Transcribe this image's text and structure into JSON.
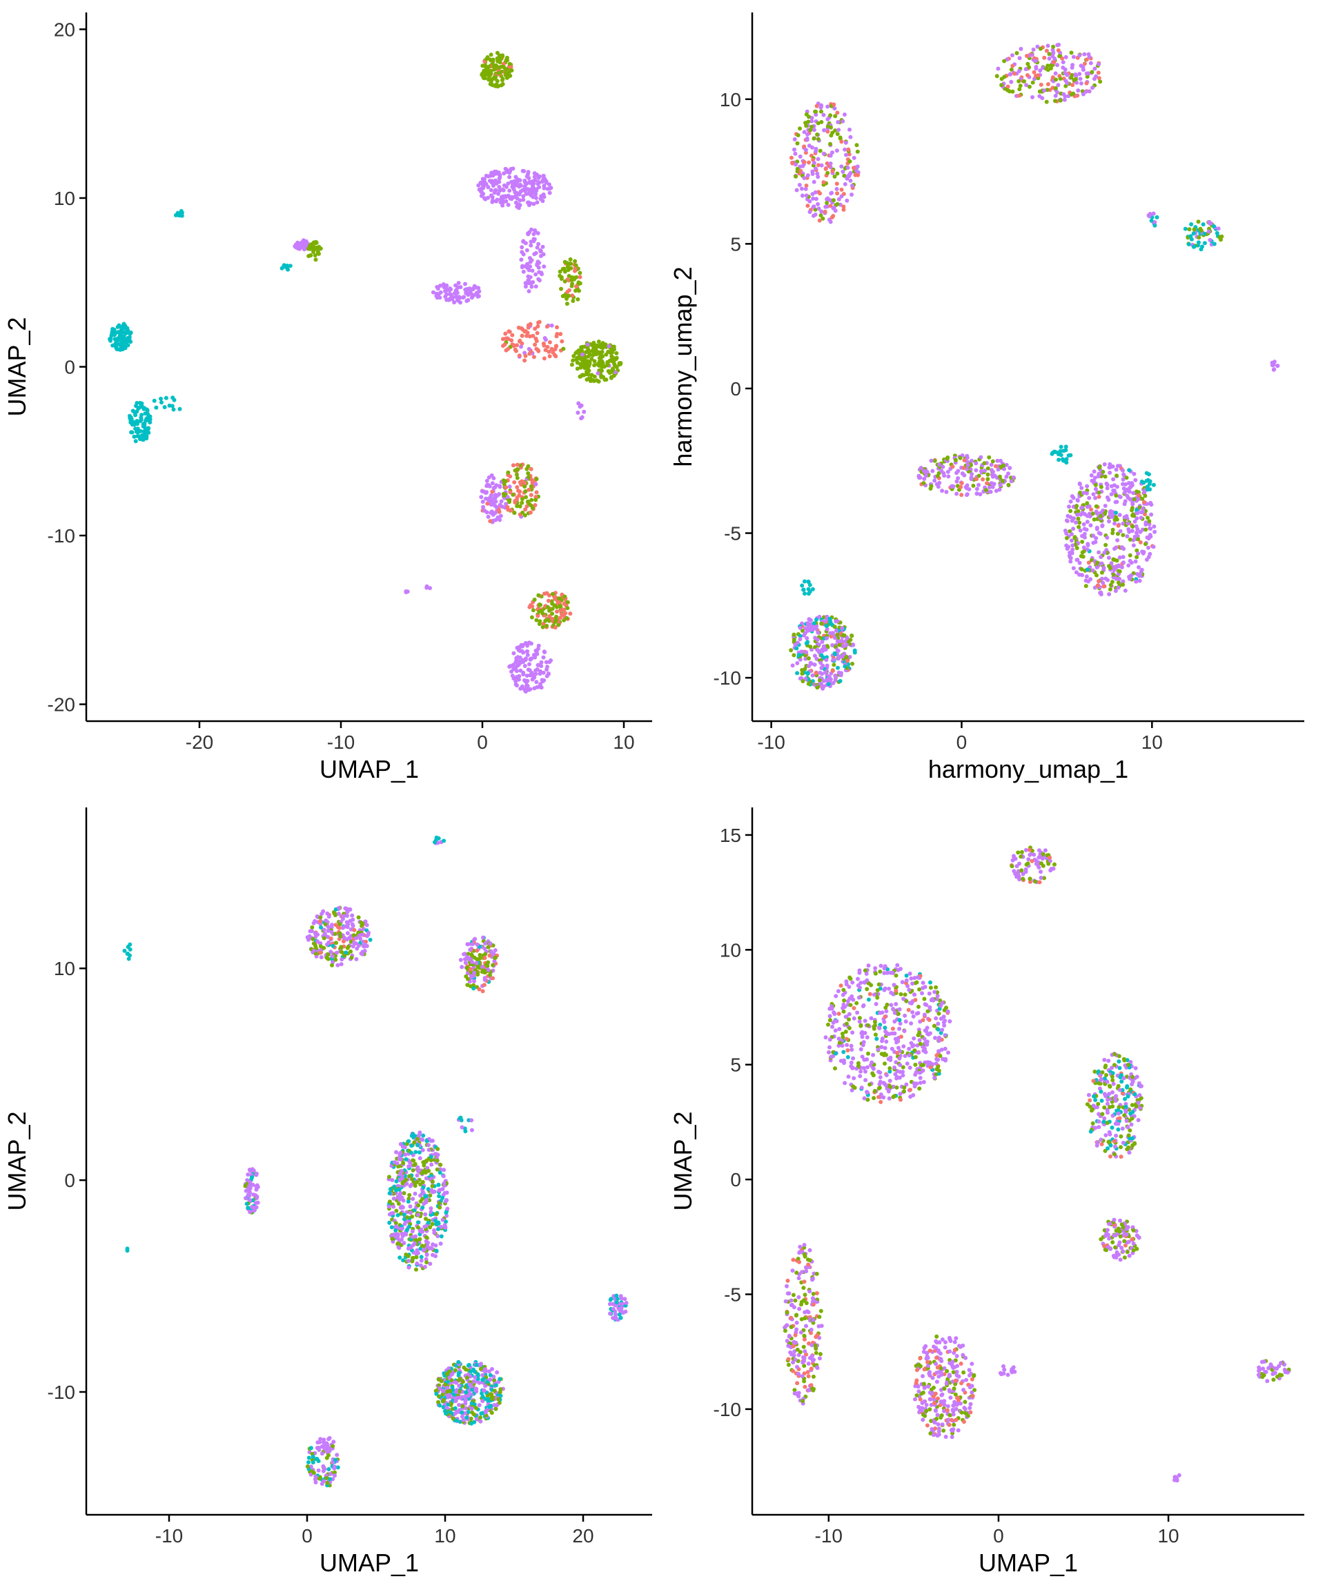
{
  "colors": {
    "red": "#F8766D",
    "green": "#7CAE00",
    "cyan": "#00BFC4",
    "purple": "#C77CFF",
    "axis": "#000000",
    "background": "#FFFFFF"
  },
  "chart_data": [
    {
      "type": "scatter",
      "xlabel": "UMAP_1",
      "ylabel": "UMAP_2",
      "xlim": [
        -28,
        12
      ],
      "ylim": [
        -21,
        21
      ],
      "xticks": [
        -20,
        -10,
        0,
        10
      ],
      "yticks": [
        -20,
        -10,
        0,
        10,
        20
      ],
      "grid": false,
      "legend": "none",
      "clusters": [
        {
          "color": "green",
          "cx": 1.0,
          "cy": 17.6,
          "rx": 1.1,
          "ry": 1.0,
          "n": 120,
          "mix": {
            "green": 0.92,
            "red": 0.08
          }
        },
        {
          "color": "purple",
          "cx": 2.3,
          "cy": 10.6,
          "rx": 2.6,
          "ry": 1.2,
          "n": 220,
          "mix": {
            "purple": 1.0
          }
        },
        {
          "color": "purple",
          "cx": 3.5,
          "cy": 6.3,
          "rx": 0.9,
          "ry": 1.9,
          "n": 70,
          "mix": {
            "purple": 1.0
          }
        },
        {
          "color": "purple",
          "cx": -1.8,
          "cy": 4.4,
          "rx": 1.7,
          "ry": 0.6,
          "n": 80,
          "mix": {
            "purple": 1.0
          }
        },
        {
          "color": "green",
          "cx": 6.2,
          "cy": 5.0,
          "rx": 0.8,
          "ry": 1.4,
          "n": 60,
          "mix": {
            "green": 0.8,
            "red": 0.2
          }
        },
        {
          "color": "red",
          "cx": 3.7,
          "cy": 1.5,
          "rx": 2.3,
          "ry": 1.2,
          "n": 90,
          "mix": {
            "red": 0.85,
            "purple": 0.1,
            "green": 0.05
          }
        },
        {
          "color": "green",
          "cx": 8.1,
          "cy": 0.3,
          "rx": 1.8,
          "ry": 1.2,
          "n": 200,
          "mix": {
            "green": 0.95,
            "purple": 0.05
          }
        },
        {
          "color": "purple",
          "cx": 0.8,
          "cy": -7.8,
          "rx": 0.9,
          "ry": 1.5,
          "n": 80,
          "mix": {
            "purple": 0.9,
            "red": 0.1
          }
        },
        {
          "color": "green",
          "cx": 2.7,
          "cy": -7.3,
          "rx": 1.3,
          "ry": 1.6,
          "n": 110,
          "mix": {
            "green": 0.55,
            "red": 0.4,
            "purple": 0.05
          }
        },
        {
          "color": "red",
          "cx": 4.8,
          "cy": -14.4,
          "rx": 1.5,
          "ry": 1.1,
          "n": 110,
          "mix": {
            "red": 0.5,
            "green": 0.5
          }
        },
        {
          "color": "purple",
          "cx": 3.4,
          "cy": -17.8,
          "rx": 1.5,
          "ry": 1.5,
          "n": 130,
          "mix": {
            "purple": 1.0
          }
        },
        {
          "color": "purple",
          "cx": -12.7,
          "cy": 7.2,
          "rx": 0.6,
          "ry": 0.3,
          "n": 25,
          "mix": {
            "purple": 1.0
          }
        },
        {
          "color": "green",
          "cx": -11.9,
          "cy": 6.9,
          "rx": 0.5,
          "ry": 0.6,
          "n": 30,
          "mix": {
            "green": 0.9,
            "purple": 0.1
          }
        },
        {
          "color": "cyan",
          "cx": -13.9,
          "cy": 5.9,
          "rx": 0.4,
          "ry": 0.15,
          "n": 8,
          "mix": {
            "cyan": 1.0
          }
        },
        {
          "color": "cyan",
          "cx": -21.5,
          "cy": 9.0,
          "rx": 0.3,
          "ry": 0.35,
          "n": 8,
          "mix": {
            "cyan": 1.0
          }
        },
        {
          "color": "cyan",
          "cx": -25.6,
          "cy": 1.8,
          "rx": 0.8,
          "ry": 0.8,
          "n": 90,
          "mix": {
            "cyan": 1.0
          }
        },
        {
          "color": "cyan",
          "cx": -24.2,
          "cy": -3.3,
          "rx": 0.8,
          "ry": 1.2,
          "n": 80,
          "mix": {
            "cyan": 1.0
          }
        },
        {
          "color": "cyan",
          "cx": -22.2,
          "cy": -2.2,
          "rx": 1.3,
          "ry": 0.4,
          "n": 12,
          "mix": {
            "cyan": 1.0
          }
        },
        {
          "color": "purple",
          "cx": -5.4,
          "cy": -13.3,
          "rx": 0.2,
          "ry": 0.1,
          "n": 4,
          "mix": {
            "purple": 1.0
          }
        },
        {
          "color": "purple",
          "cx": -3.9,
          "cy": -13.1,
          "rx": 0.2,
          "ry": 0.1,
          "n": 4,
          "mix": {
            "purple": 1.0
          }
        },
        {
          "color": "purple",
          "cx": 6.9,
          "cy": -2.6,
          "rx": 0.3,
          "ry": 0.5,
          "n": 8,
          "mix": {
            "purple": 1.0
          }
        }
      ]
    },
    {
      "type": "scatter",
      "xlabel": "harmony_umap_1",
      "ylabel": "harmony_umap_2",
      "xlim": [
        -11,
        18
      ],
      "ylim": [
        -11.5,
        13
      ],
      "xticks": [
        -10,
        0,
        10
      ],
      "yticks": [
        -10,
        -5,
        0,
        5,
        10
      ],
      "grid": false,
      "legend": "none",
      "clusters": [
        {
          "color": "mix",
          "cx": -7.2,
          "cy": 7.8,
          "rx": 1.8,
          "ry": 2.1,
          "n": 260,
          "mix": {
            "purple": 0.55,
            "green": 0.25,
            "red": 0.2
          }
        },
        {
          "color": "mix",
          "cx": 4.6,
          "cy": 10.9,
          "rx": 2.8,
          "ry": 1.0,
          "n": 220,
          "mix": {
            "purple": 0.5,
            "green": 0.3,
            "red": 0.2
          }
        },
        {
          "color": "mix",
          "cx": 12.6,
          "cy": 5.3,
          "rx": 1.1,
          "ry": 0.5,
          "n": 60,
          "mix": {
            "green": 0.45,
            "cyan": 0.3,
            "purple": 0.25
          }
        },
        {
          "color": "cyan",
          "cx": 10.1,
          "cy": 5.9,
          "rx": 0.3,
          "ry": 0.5,
          "n": 10,
          "mix": {
            "cyan": 0.5,
            "purple": 0.5
          }
        },
        {
          "color": "purple",
          "cx": 16.5,
          "cy": 0.8,
          "rx": 0.2,
          "ry": 0.3,
          "n": 8,
          "mix": {
            "purple": 1.0
          }
        },
        {
          "color": "mix",
          "cx": 0.2,
          "cy": -3.0,
          "rx": 2.7,
          "ry": 0.7,
          "n": 200,
          "mix": {
            "purple": 0.55,
            "green": 0.35,
            "red": 0.1
          }
        },
        {
          "color": "mix",
          "cx": 7.8,
          "cy": -4.9,
          "rx": 2.4,
          "ry": 2.3,
          "n": 500,
          "mix": {
            "purple": 0.65,
            "green": 0.28,
            "red": 0.05,
            "cyan": 0.02
          }
        },
        {
          "color": "cyan",
          "cx": 5.3,
          "cy": -2.3,
          "rx": 0.6,
          "ry": 0.3,
          "n": 20,
          "mix": {
            "cyan": 1.0
          }
        },
        {
          "color": "cyan",
          "cx": 9.8,
          "cy": -3.2,
          "rx": 0.4,
          "ry": 0.3,
          "n": 12,
          "mix": {
            "cyan": 1.0
          }
        },
        {
          "color": "mix",
          "cx": -7.3,
          "cy": -9.1,
          "rx": 1.7,
          "ry": 1.3,
          "n": 320,
          "mix": {
            "purple": 0.5,
            "green": 0.3,
            "cyan": 0.15,
            "red": 0.05
          }
        },
        {
          "color": "cyan",
          "cx": -8.1,
          "cy": -6.9,
          "rx": 0.3,
          "ry": 0.3,
          "n": 12,
          "mix": {
            "cyan": 1.0
          }
        }
      ]
    },
    {
      "type": "scatter",
      "xlabel": "UMAP_1",
      "ylabel": "UMAP_2",
      "xlim": [
        -16,
        25
      ],
      "ylim": [
        -15.8,
        17.6
      ],
      "xticks": [
        -10,
        0,
        10,
        20
      ],
      "yticks": [
        -10,
        0,
        10
      ],
      "grid": false,
      "legend": "none",
      "clusters": [
        {
          "color": "mix",
          "cx": 2.3,
          "cy": 11.5,
          "rx": 2.3,
          "ry": 1.4,
          "n": 240,
          "mix": {
            "purple": 0.6,
            "green": 0.25,
            "red": 0.1,
            "cyan": 0.05
          }
        },
        {
          "color": "mix",
          "cx": 12.5,
          "cy": 10.2,
          "rx": 1.4,
          "ry": 1.3,
          "n": 160,
          "mix": {
            "purple": 0.4,
            "green": 0.35,
            "red": 0.2,
            "cyan": 0.05
          }
        },
        {
          "color": "mix",
          "cx": 8.0,
          "cy": -1.0,
          "rx": 2.2,
          "ry": 3.3,
          "n": 520,
          "mix": {
            "purple": 0.45,
            "green": 0.3,
            "cyan": 0.25
          }
        },
        {
          "color": "mix",
          "cx": 11.8,
          "cy": -10.0,
          "rx": 2.5,
          "ry": 1.5,
          "n": 380,
          "mix": {
            "purple": 0.45,
            "cyan": 0.3,
            "green": 0.25
          }
        },
        {
          "color": "mix",
          "cx": 1.2,
          "cy": -13.3,
          "rx": 1.2,
          "ry": 1.2,
          "n": 100,
          "mix": {
            "purple": 0.5,
            "green": 0.3,
            "cyan": 0.2
          }
        },
        {
          "color": "mix",
          "cx": -4.0,
          "cy": -0.5,
          "rx": 0.5,
          "ry": 1.2,
          "n": 70,
          "mix": {
            "purple": 0.7,
            "cyan": 0.2,
            "green": 0.1
          }
        },
        {
          "color": "mix",
          "cx": 22.5,
          "cy": -6.0,
          "rx": 0.7,
          "ry": 0.6,
          "n": 50,
          "mix": {
            "cyan": 0.5,
            "purple": 0.5
          }
        },
        {
          "color": "cyan",
          "cx": -13.0,
          "cy": 10.9,
          "rx": 0.3,
          "ry": 0.5,
          "n": 8,
          "mix": {
            "cyan": 1.0
          }
        },
        {
          "color": "cyan",
          "cx": -13.0,
          "cy": -3.3,
          "rx": 0.1,
          "ry": 0.1,
          "n": 2,
          "mix": {
            "cyan": 1.0
          }
        },
        {
          "color": "mix",
          "cx": 9.5,
          "cy": 16.0,
          "rx": 0.5,
          "ry": 0.2,
          "n": 8,
          "mix": {
            "cyan": 0.5,
            "purple": 0.5
          }
        },
        {
          "color": "mix",
          "cx": 11.5,
          "cy": 2.6,
          "rx": 0.6,
          "ry": 0.5,
          "n": 10,
          "mix": {
            "cyan": 0.5,
            "purple": 0.5
          }
        }
      ]
    },
    {
      "type": "scatter",
      "xlabel": "UMAP_1",
      "ylabel": "UMAP_2",
      "xlim": [
        -14.5,
        18
      ],
      "ylim": [
        -14.6,
        16.2
      ],
      "xticks": [
        -10,
        0,
        10
      ],
      "yticks": [
        -10,
        -5,
        0,
        5,
        10,
        15
      ],
      "grid": false,
      "legend": "none",
      "clusters": [
        {
          "color": "mix",
          "cx": -6.5,
          "cy": 6.4,
          "rx": 3.7,
          "ry": 3.1,
          "n": 560,
          "mix": {
            "purple": 0.65,
            "green": 0.25,
            "red": 0.05,
            "cyan": 0.05
          }
        },
        {
          "color": "mix",
          "cx": 2.0,
          "cy": 13.7,
          "rx": 1.3,
          "ry": 0.8,
          "n": 80,
          "mix": {
            "purple": 0.7,
            "green": 0.25,
            "red": 0.05
          }
        },
        {
          "color": "mix",
          "cx": 6.9,
          "cy": 3.2,
          "rx": 1.7,
          "ry": 2.3,
          "n": 260,
          "mix": {
            "purple": 0.5,
            "green": 0.25,
            "cyan": 0.2,
            "red": 0.05
          }
        },
        {
          "color": "mix",
          "cx": 7.1,
          "cy": -2.6,
          "rx": 1.2,
          "ry": 0.9,
          "n": 100,
          "mix": {
            "purple": 0.55,
            "green": 0.4,
            "red": 0.05
          }
        },
        {
          "color": "mix",
          "cx": -11.5,
          "cy": -6.3,
          "rx": 1.1,
          "ry": 3.5,
          "n": 220,
          "mix": {
            "purple": 0.45,
            "green": 0.35,
            "red": 0.2
          }
        },
        {
          "color": "mix",
          "cx": -3.2,
          "cy": -9.0,
          "rx": 1.8,
          "ry": 2.3,
          "n": 300,
          "mix": {
            "purple": 0.65,
            "green": 0.2,
            "red": 0.15
          }
        },
        {
          "color": "mix",
          "cx": 16.1,
          "cy": -8.3,
          "rx": 1.0,
          "ry": 0.5,
          "n": 40,
          "mix": {
            "purple": 0.6,
            "green": 0.4
          }
        },
        {
          "color": "purple",
          "cx": 10.5,
          "cy": -13.0,
          "rx": 0.2,
          "ry": 0.2,
          "n": 6,
          "mix": {
            "purple": 1.0
          }
        },
        {
          "color": "purple",
          "cx": 0.5,
          "cy": -8.3,
          "rx": 0.5,
          "ry": 0.3,
          "n": 12,
          "mix": {
            "purple": 1.0
          }
        }
      ]
    }
  ]
}
